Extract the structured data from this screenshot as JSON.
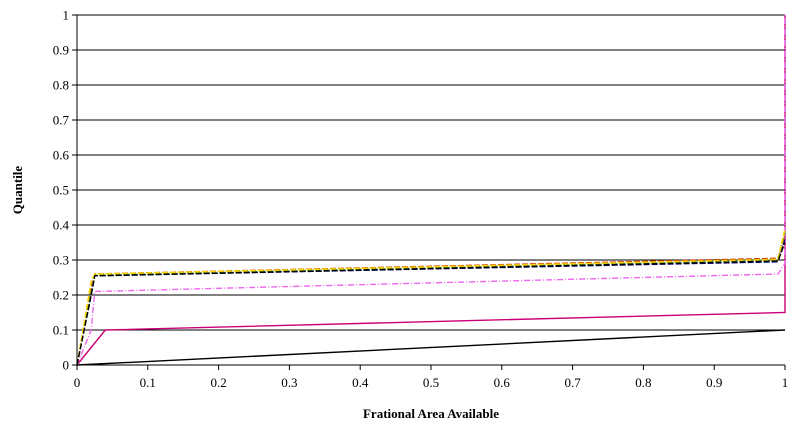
{
  "chart_data": {
    "type": "line",
    "title": "",
    "xlabel": "Frational Area Available",
    "ylabel": "Quantile",
    "xlim": [
      0,
      1
    ],
    "ylim": [
      0,
      1
    ],
    "x_ticks": [
      "0",
      "0.1",
      "0.2",
      "0.3",
      "0.4",
      "0.5",
      "0.6",
      "0.7",
      "0.8",
      "0.9",
      "1"
    ],
    "y_ticks": [
      "0",
      "0.1",
      "0.2",
      "0.3",
      "0.4",
      "0.5",
      "0.6",
      "0.7",
      "0.8",
      "0.9",
      "1"
    ],
    "grid": "horizontal",
    "legend": "none",
    "series": [
      {
        "color": "#000000",
        "dash": "solid",
        "x": [
          0,
          1
        ],
        "y": [
          0,
          0.1
        ]
      },
      {
        "color": "#cc0077",
        "dash": "solid",
        "x": [
          0,
          0.04,
          1,
          1
        ],
        "y": [
          0,
          0.1,
          0.15,
          1.0
        ]
      },
      {
        "color": "#ee66ee",
        "dash": "dashdot",
        "x": [
          0,
          0.02,
          0.025,
          0.99,
          1,
          1
        ],
        "y": [
          0,
          0.1,
          0.21,
          0.26,
          0.29,
          1.0
        ]
      },
      {
        "color": "#000080",
        "dash": "dashed",
        "x": [
          0,
          0.02,
          0.025,
          0.99,
          1
        ],
        "y": [
          0,
          0.2,
          0.255,
          0.295,
          0.36
        ]
      },
      {
        "color": "#cc3300",
        "dash": "dashed",
        "x": [
          0,
          0.02,
          0.025,
          0.99,
          1
        ],
        "y": [
          0,
          0.22,
          0.26,
          0.305,
          0.37
        ]
      },
      {
        "color": "#66aa33",
        "dash": "dashed",
        "x": [
          0,
          0.02,
          0.025,
          0.99,
          1
        ],
        "y": [
          0,
          0.21,
          0.257,
          0.3,
          0.38
        ]
      },
      {
        "color": "#ffd700",
        "dash": "dashed",
        "x": [
          0,
          0.02,
          0.025,
          0.99,
          1
        ],
        "y": [
          0,
          0.24,
          0.26,
          0.302,
          0.39
        ]
      },
      {
        "color": "#000000",
        "dash": "dashed",
        "x": [
          0,
          0.02,
          0.025,
          0.99,
          1
        ],
        "y": [
          0,
          0.2,
          0.255,
          0.297,
          0.35
        ]
      }
    ]
  }
}
